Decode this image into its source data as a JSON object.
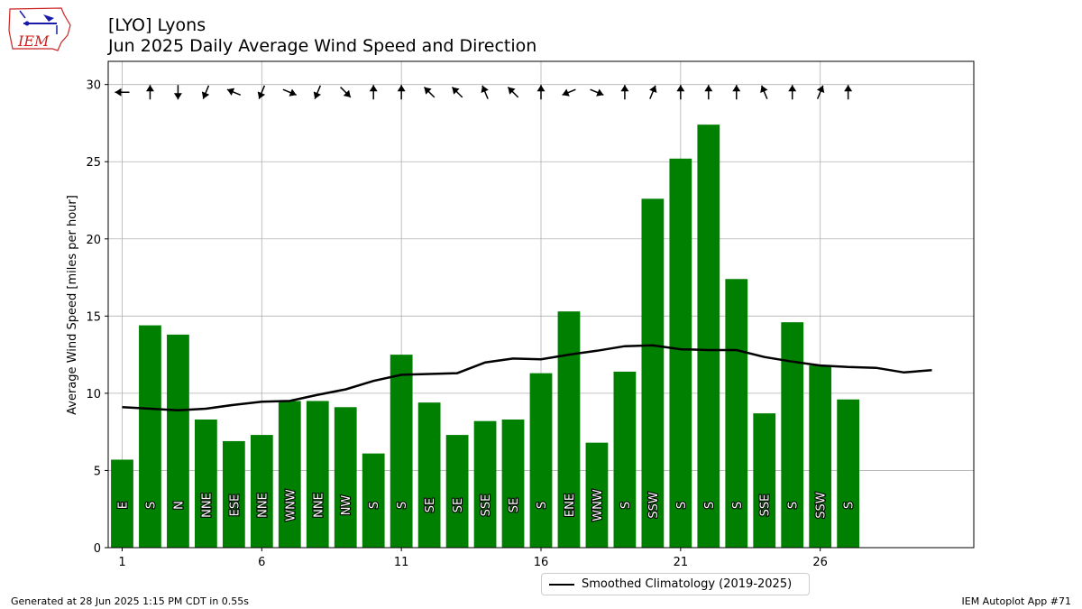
{
  "header": {
    "title_line1": "[LYO] Lyons",
    "title_line2": "Jun 2025 Daily Average Wind Speed and Direction",
    "logo_text": "IEM"
  },
  "footer": {
    "generated": "Generated at 28 Jun 2025 1:15 PM CDT in 0.55s",
    "app": "IEM Autoplot App #71"
  },
  "legend": {
    "climatology_label": "Smoothed Climatology (2019-2025)"
  },
  "colors": {
    "bar": "#008000",
    "line": "#000000",
    "grid": "#b0b0b0",
    "logo": "#cc2222"
  },
  "chart_data": {
    "type": "bar",
    "title": "[LYO] Lyons\nJun 2025 Daily Average Wind Speed and Direction",
    "xlabel": "",
    "ylabel": "Average Wind Speed [miles per hour]",
    "xlim": [
      0.5,
      31.5
    ],
    "ylim": [
      0,
      31.5
    ],
    "xticks": [
      1,
      6,
      11,
      16,
      21,
      26
    ],
    "yticks": [
      0,
      5,
      10,
      15,
      20,
      25,
      30
    ],
    "grid": true,
    "legend_position": "bottom-center",
    "days": [
      1,
      2,
      3,
      4,
      5,
      6,
      7,
      8,
      9,
      10,
      11,
      12,
      13,
      14,
      15,
      16,
      17,
      18,
      19,
      20,
      21,
      22,
      23,
      24,
      25,
      26,
      27
    ],
    "values": [
      5.7,
      14.4,
      13.8,
      8.3,
      6.9,
      7.3,
      9.5,
      9.5,
      9.1,
      6.1,
      12.5,
      9.4,
      7.3,
      8.2,
      8.3,
      11.3,
      15.3,
      6.8,
      11.4,
      22.6,
      25.2,
      27.4,
      17.4,
      8.7,
      14.6,
      11.8,
      9.6
    ],
    "directions": [
      "E",
      "S",
      "N",
      "NNE",
      "ESE",
      "NNE",
      "WNW",
      "NNE",
      "NW",
      "S",
      "S",
      "SE",
      "SE",
      "SSE",
      "SE",
      "S",
      "ENE",
      "WNW",
      "S",
      "SSW",
      "S",
      "S",
      "S",
      "SSE",
      "S",
      "SSW",
      "S"
    ],
    "direction_degrees": [
      90,
      180,
      0,
      22.5,
      112.5,
      22.5,
      292.5,
      22.5,
      315,
      180,
      180,
      135,
      135,
      157.5,
      135,
      180,
      67.5,
      292.5,
      180,
      202.5,
      180,
      180,
      180,
      157.5,
      180,
      202.5,
      180
    ],
    "series": [
      {
        "name": "Smoothed Climatology (2019-2025)",
        "x": [
          1,
          2,
          3,
          4,
          5,
          6,
          7,
          8,
          9,
          10,
          11,
          12,
          13,
          14,
          15,
          16,
          17,
          18,
          19,
          20,
          21,
          22,
          23,
          24,
          25,
          26,
          27,
          28,
          29,
          30
        ],
        "values": [
          9.1,
          9.0,
          8.9,
          9.0,
          9.25,
          9.45,
          9.5,
          9.9,
          10.25,
          10.8,
          11.2,
          11.25,
          11.3,
          12.0,
          12.25,
          12.2,
          12.5,
          12.75,
          13.05,
          13.1,
          12.85,
          12.8,
          12.8,
          12.35,
          12.05,
          11.8,
          11.7,
          11.65,
          11.35,
          11.5
        ]
      }
    ]
  }
}
